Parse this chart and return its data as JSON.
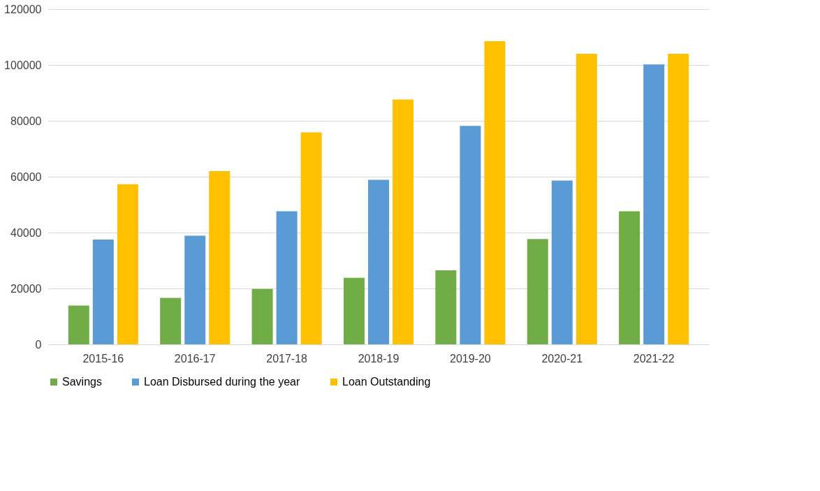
{
  "chart_data": {
    "type": "bar",
    "categories": [
      "2015-16",
      "2016-17",
      "2017-18",
      "2018-19",
      "2019-20",
      "2020-21",
      "2021-22"
    ],
    "series": [
      {
        "name": "Savings",
        "color": "#70ad47",
        "values": [
          13900,
          16600,
          19800,
          23800,
          26500,
          37700,
          47600
        ]
      },
      {
        "name": "Loan Disbursed during the year",
        "color": "#5b9bd5",
        "values": [
          37500,
          38900,
          47600,
          58900,
          78200,
          58600,
          100200
        ]
      },
      {
        "name": "Loan Outstanding",
        "color": "#ffc000",
        "values": [
          57300,
          62000,
          75900,
          87600,
          108500,
          104000,
          104000
        ]
      }
    ],
    "ylim": [
      0,
      120000
    ],
    "yticks": [
      0,
      20000,
      40000,
      60000,
      80000,
      100000,
      120000
    ],
    "grid": "y",
    "legend": "bottom"
  }
}
